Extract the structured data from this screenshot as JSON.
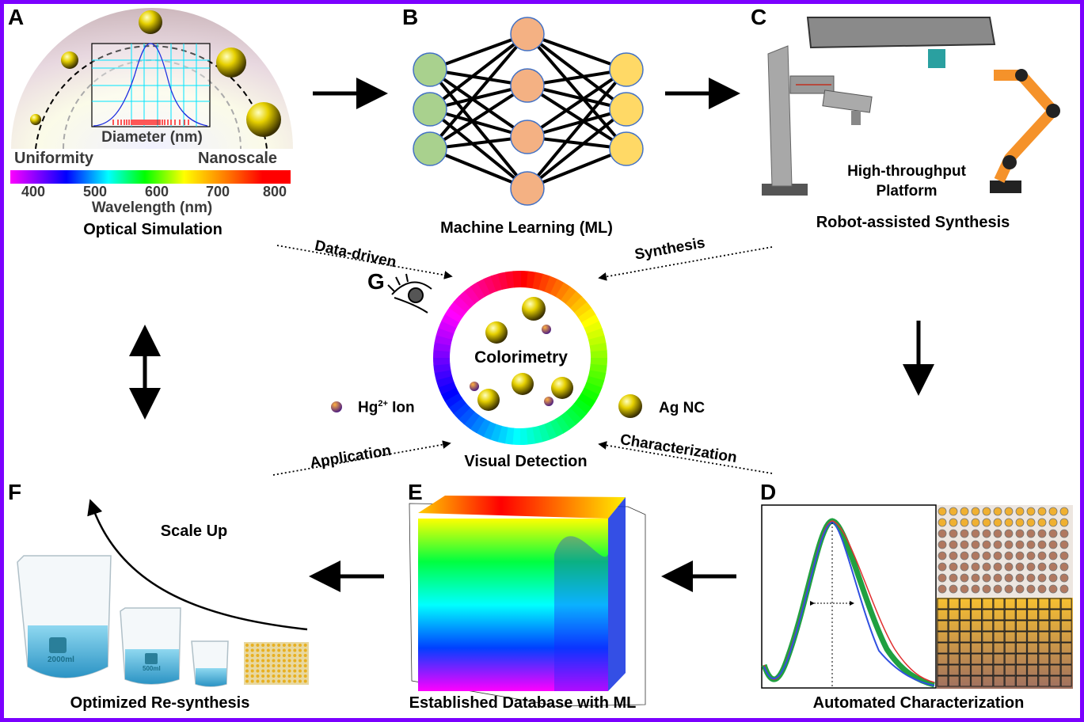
{
  "panels": {
    "a": {
      "label": "A",
      "inset_xlabel": "Diameter (nm)",
      "left_label": "Uniformity",
      "right_label": "Nanoscale",
      "wavelength_ticks": [
        "400",
        "500",
        "600",
        "700",
        "800"
      ],
      "wavelength_label": "Wavelength (nm)",
      "caption": "Optical Simulation"
    },
    "b": {
      "label": "B",
      "caption": "Machine Learning (ML)"
    },
    "c": {
      "label": "C",
      "platform_label_1": "High-throughput",
      "platform_label_2": "Platform",
      "caption": "Robot-assisted Synthesis"
    },
    "d": {
      "label": "D",
      "caption": "Automated Characterization"
    },
    "e": {
      "label": "E",
      "caption": "Established Database with ML"
    },
    "f": {
      "label": "F",
      "arrow_label": "Scale Up",
      "caption": "Optimized Re-synthesis",
      "beaker_labels": [
        "2000ml",
        "500ml"
      ]
    },
    "g": {
      "label": "G",
      "center_label": "Colorimetry",
      "caption": "Visual Detection",
      "hg_label": "Hg",
      "hg_sup": "2+",
      "hg_suffix": " Ion",
      "ag_label": "Ag NC",
      "links": {
        "data_driven": "Data-driven",
        "synthesis": "Synthesis",
        "application": "Application",
        "characterization": "Characterization"
      }
    }
  },
  "colors": {
    "frame": "#7b00ff",
    "input_node": "#a9d18e",
    "hidden_node": "#f4b183",
    "output_node": "#ffd966",
    "node_stroke": "#4472c4",
    "water": "#5ec3e6"
  }
}
